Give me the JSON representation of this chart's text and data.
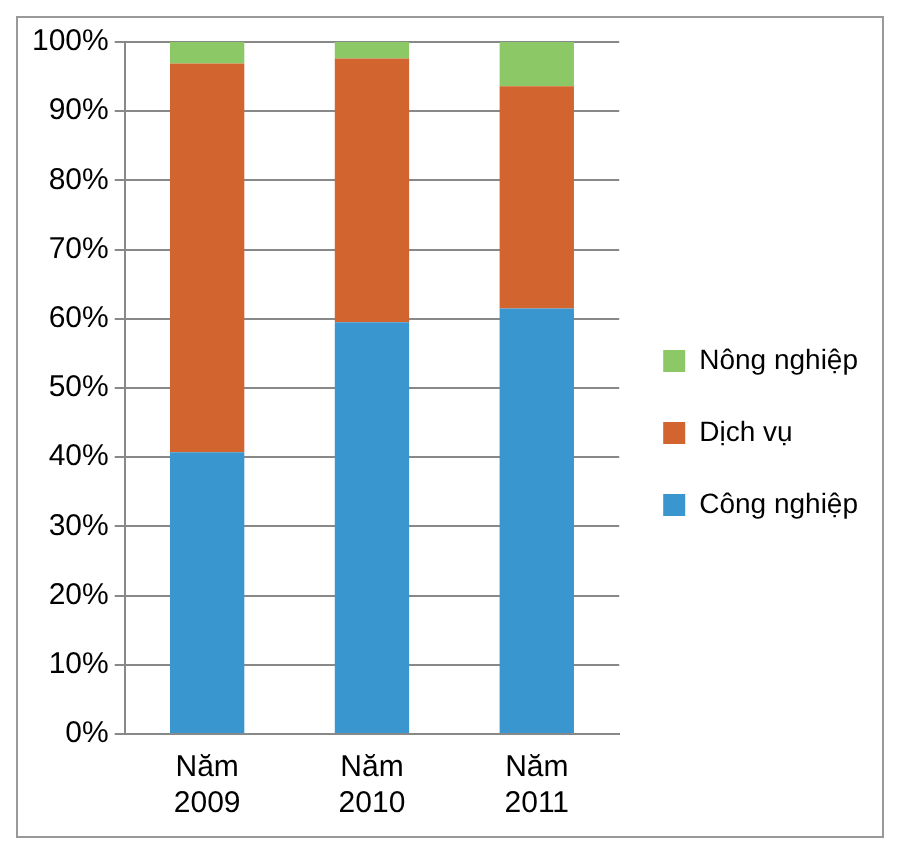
{
  "chart_data": {
    "type": "bar",
    "stacked": true,
    "categories": [
      "Năm 2009",
      "Năm 2010",
      "Năm 2011"
    ],
    "series": [
      {
        "name": "Công nghiệp",
        "color": "#3a96cf",
        "values": [
          40.7,
          59.5,
          61.5
        ]
      },
      {
        "name": "Dịch vụ",
        "color": "#d2652f",
        "values": [
          56.2,
          38.1,
          32.1
        ]
      },
      {
        "name": "Nông nghiệp",
        "color": "#8cc966",
        "values": [
          3.1,
          2.4,
          6.4
        ]
      }
    ],
    "ylim": [
      0,
      100
    ],
    "yticks": [
      {
        "value": 0,
        "label": "0%"
      },
      {
        "value": 10,
        "label": "10%"
      },
      {
        "value": 20,
        "label": "20%"
      },
      {
        "value": 30,
        "label": "30%"
      },
      {
        "value": 40,
        "label": "40%"
      },
      {
        "value": 50,
        "label": "50%"
      },
      {
        "value": 60,
        "label": "60%"
      },
      {
        "value": 70,
        "label": "70%"
      },
      {
        "value": 80,
        "label": "80%"
      },
      {
        "value": 90,
        "label": "90%"
      },
      {
        "value": 100,
        "label": "100%"
      }
    ],
    "grid": "y",
    "legend": "right"
  }
}
